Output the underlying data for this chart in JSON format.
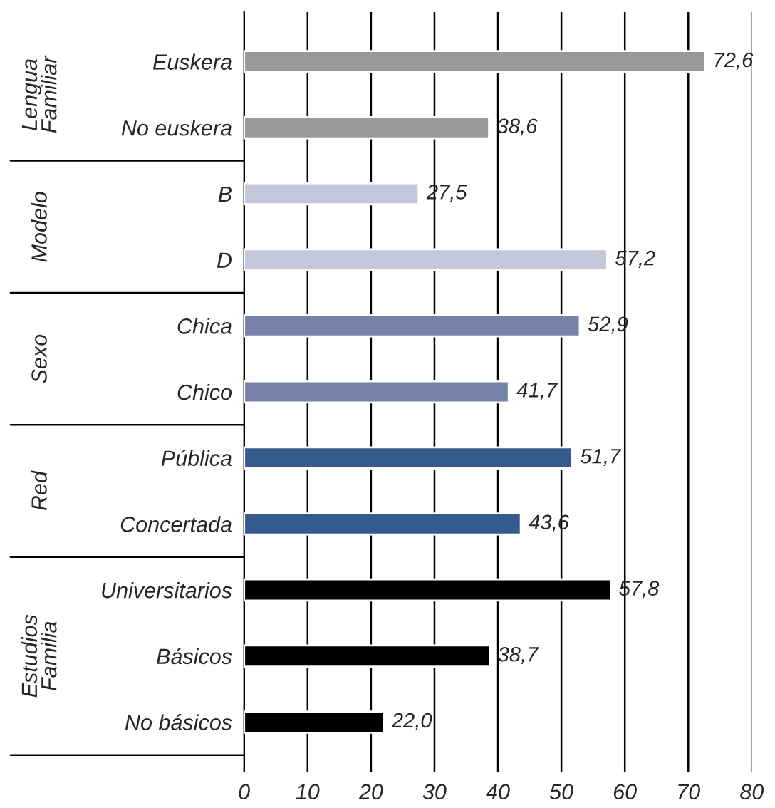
{
  "chart_data": {
    "type": "bar",
    "orientation": "horizontal",
    "categories": [
      "Euskera",
      "No euskera",
      "B",
      "D",
      "Chica",
      "Chico",
      "Pública",
      "Concertada",
      "Universitarios",
      "Básicos",
      "No básicos"
    ],
    "values": [
      72.6,
      38.6,
      27.5,
      57.2,
      52.9,
      41.7,
      51.7,
      43.6,
      57.8,
      38.7,
      22.0
    ],
    "value_labels": [
      "72,6",
      "38,6",
      "27,5",
      "57,2",
      "52,9",
      "41,7",
      "51,7",
      "43,6",
      "57,8",
      "38,7",
      "22,0"
    ],
    "colors": [
      "#999999",
      "#999999",
      "#c6c6da",
      "#c6c6da",
      "#7682aa",
      "#7682aa",
      "#355a8c",
      "#355a8c",
      "#000000",
      "#000000",
      "#000000"
    ],
    "annotations": [
      "Lengua\nFamiliar",
      "Modelo",
      "Sexo",
      "Red",
      "Estudios\nFamilia"
    ],
    "xlim": [
      0,
      80
    ],
    "xticks": [
      0,
      10,
      20,
      30,
      40,
      50,
      60,
      70,
      80
    ],
    "grid": "x",
    "legend": false
  }
}
